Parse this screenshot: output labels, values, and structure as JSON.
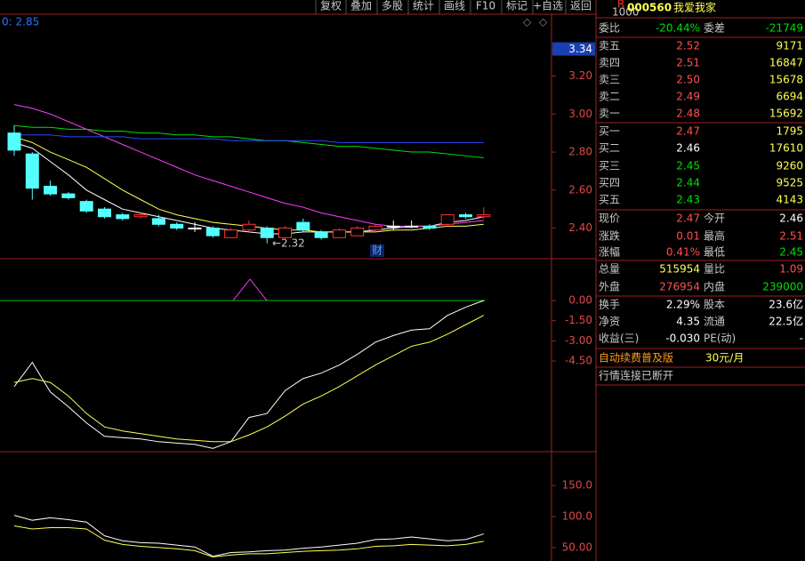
{
  "toolbar": [
    "复权",
    "叠加",
    "多股",
    "统计",
    "画线",
    "F10",
    "标记",
    "+自选",
    "返回"
  ],
  "price_panel": {
    "info": "0: 2.85",
    "ylim": [
      2.239,
      3.525
    ],
    "yticks": [
      {
        "value": 3.34,
        "label": "3.34"
      },
      {
        "value": 3.2,
        "label": "3.20"
      },
      {
        "value": 3.0,
        "label": "3.00"
      },
      {
        "value": 2.8,
        "label": "2.80"
      },
      {
        "value": 2.6,
        "label": "2.60"
      },
      {
        "value": 2.4,
        "label": "2.40"
      }
    ],
    "up_color": "#ff3232",
    "down_color": "#54ffff",
    "flat_color": "#ffffff",
    "candles": [
      {
        "open": 2.9,
        "high": 2.94,
        "low": 2.78,
        "close": 2.81
      },
      {
        "open": 2.79,
        "high": 2.8,
        "low": 2.55,
        "close": 2.61
      },
      {
        "open": 2.62,
        "high": 2.65,
        "low": 2.57,
        "close": 2.58
      },
      {
        "open": 2.58,
        "high": 2.59,
        "low": 2.55,
        "close": 2.56
      },
      {
        "open": 2.54,
        "high": 2.55,
        "low": 2.48,
        "close": 2.49
      },
      {
        "open": 2.5,
        "high": 2.51,
        "low": 2.45,
        "close": 2.46
      },
      {
        "open": 2.47,
        "high": 2.48,
        "low": 2.44,
        "close": 2.45
      },
      {
        "open": 2.46,
        "high": 2.48,
        "low": 2.45,
        "close": 2.47
      },
      {
        "open": 2.45,
        "high": 2.47,
        "low": 2.41,
        "close": 2.42
      },
      {
        "open": 2.42,
        "high": 2.43,
        "low": 2.39,
        "close": 2.4
      },
      {
        "open": 2.4,
        "high": 2.43,
        "low": 2.38,
        "close": 2.4
      },
      {
        "open": 2.4,
        "high": 2.41,
        "low": 2.35,
        "close": 2.36
      },
      {
        "open": 2.35,
        "high": 2.4,
        "low": 2.35,
        "close": 2.39
      },
      {
        "open": 2.39,
        "high": 2.44,
        "low": 2.38,
        "close": 2.42
      },
      {
        "open": 2.4,
        "high": 2.41,
        "low": 2.32,
        "close": 2.35
      },
      {
        "open": 2.35,
        "high": 2.41,
        "low": 2.34,
        "close": 2.4
      },
      {
        "open": 2.43,
        "high": 2.45,
        "low": 2.38,
        "close": 2.39
      },
      {
        "open": 2.38,
        "high": 2.39,
        "low": 2.34,
        "close": 2.35
      },
      {
        "open": 2.35,
        "high": 2.4,
        "low": 2.35,
        "close": 2.39
      },
      {
        "open": 2.36,
        "high": 2.41,
        "low": 2.36,
        "close": 2.4
      },
      {
        "open": 2.39,
        "high": 2.42,
        "low": 2.38,
        "close": 2.41
      },
      {
        "open": 2.41,
        "high": 2.44,
        "low": 2.39,
        "close": 2.41
      },
      {
        "open": 2.41,
        "high": 2.44,
        "low": 2.4,
        "close": 2.41
      },
      {
        "open": 2.41,
        "high": 2.42,
        "low": 2.39,
        "close": 2.4
      },
      {
        "open": 2.42,
        "high": 2.47,
        "low": 2.41,
        "close": 2.47
      },
      {
        "open": 2.47,
        "high": 2.48,
        "low": 2.45,
        "close": 2.46
      },
      {
        "open": 2.46,
        "high": 2.51,
        "low": 2.45,
        "close": 2.47
      }
    ],
    "lines": [
      {
        "color": "#ffffff",
        "values": [
          2.85,
          2.82,
          2.75,
          2.68,
          2.6,
          2.55,
          2.5,
          2.48,
          2.46,
          2.44,
          2.42,
          2.4,
          2.39,
          2.38,
          2.37,
          2.37,
          2.38,
          2.38,
          2.38,
          2.38,
          2.39,
          2.4,
          2.41,
          2.41,
          2.43,
          2.44,
          2.46
        ]
      },
      {
        "color": "#ffff54",
        "values": [
          2.88,
          2.85,
          2.8,
          2.76,
          2.72,
          2.66,
          2.6,
          2.55,
          2.5,
          2.47,
          2.45,
          2.43,
          2.42,
          2.41,
          2.4,
          2.39,
          2.39,
          2.38,
          2.38,
          2.38,
          2.38,
          2.39,
          2.39,
          2.4,
          2.41,
          2.41,
          2.42
        ]
      },
      {
        "color": "#ff3cff",
        "values": [
          3.05,
          3.03,
          3.0,
          2.96,
          2.92,
          2.88,
          2.84,
          2.8,
          2.76,
          2.72,
          2.68,
          2.65,
          2.62,
          2.59,
          2.56,
          2.53,
          2.51,
          2.48,
          2.46,
          2.44,
          2.42,
          2.41,
          2.41,
          2.41,
          2.42,
          2.43,
          2.44
        ]
      },
      {
        "color": "#00e000",
        "values": [
          2.94,
          2.93,
          2.93,
          2.92,
          2.92,
          2.91,
          2.91,
          2.9,
          2.9,
          2.89,
          2.89,
          2.88,
          2.88,
          2.87,
          2.86,
          2.86,
          2.85,
          2.84,
          2.83,
          2.83,
          2.82,
          2.81,
          2.8,
          2.8,
          2.79,
          2.78,
          2.77
        ]
      },
      {
        "color": "#2848ff",
        "values": [
          2.89,
          2.89,
          2.89,
          2.88,
          2.88,
          2.88,
          2.88,
          2.87,
          2.87,
          2.87,
          2.87,
          2.87,
          2.86,
          2.86,
          2.86,
          2.86,
          2.86,
          2.86,
          2.85,
          2.85,
          2.85,
          2.85,
          2.85,
          2.85,
          2.85,
          2.85,
          2.85
        ]
      }
    ],
    "low_marker": "←2.32",
    "finance_marker": "财"
  },
  "indicator_panel": {
    "ylim": [
      -11.24,
      3.11
    ],
    "yticks": [
      {
        "value": 0,
        "label": "0.00"
      },
      {
        "value": -1.5,
        "label": "-1.50"
      },
      {
        "value": -3,
        "label": "-3.00"
      },
      {
        "value": -4.5,
        "label": "-4.50"
      }
    ],
    "lines": [
      {
        "color": "#ffffff",
        "values": [
          -6.4,
          -4.6,
          -6.8,
          -7.9,
          -9.1,
          -10.1,
          -10.2,
          -10.3,
          -10.5,
          -10.6,
          -10.7,
          -11.0,
          -10.5,
          -8.7,
          -8.4,
          -6.7,
          -5.8,
          -5.4,
          -4.8,
          -4.0,
          -3.1,
          -2.6,
          -2.2,
          -2.1,
          -1.1,
          -0.5,
          0.0
        ]
      },
      {
        "color": "#ffff54",
        "values": [
          -6.1,
          -5.8,
          -6.1,
          -7.1,
          -8.4,
          -9.4,
          -9.7,
          -9.9,
          -10.1,
          -10.3,
          -10.4,
          -10.5,
          -10.5,
          -10.0,
          -9.4,
          -8.6,
          -7.7,
          -7.1,
          -6.4,
          -5.6,
          -4.8,
          -4.1,
          -3.4,
          -3.1,
          -2.5,
          -1.8,
          -1.1
        ]
      }
    ]
  },
  "volume_panel": {
    "ylim": [
      28.4,
      204.5
    ],
    "yticks": [
      {
        "value": 150,
        "label": "150.0"
      },
      {
        "value": 100,
        "label": "100.0"
      },
      {
        "value": 50,
        "label": "50.00"
      }
    ],
    "lines": [
      {
        "color": "#ffffff",
        "values": [
          102,
          94,
          98,
          95,
          91,
          69,
          61,
          58,
          57,
          54,
          51,
          36,
          42,
          43,
          45,
          46,
          49,
          51,
          54,
          57,
          63,
          64,
          67,
          64,
          61,
          63,
          72
        ]
      },
      {
        "color": "#ffff54",
        "values": [
          85,
          80,
          82,
          82,
          80,
          62,
          55,
          52,
          50,
          48,
          45,
          35,
          38,
          40,
          40,
          42,
          44,
          45,
          46,
          48,
          52,
          53,
          55,
          54,
          53,
          55,
          60
        ]
      }
    ]
  },
  "quote": {
    "badge_top": "R",
    "badge_bottom": "1000",
    "code": "000560",
    "name": "我爱我家",
    "rows": [
      [
        {
          "text": "委比",
          "color": "#c8c8c8"
        },
        {
          "text": "-20.44%",
          "color": "#00e000"
        },
        {
          "text": "委差",
          "color": "#c8c8c8"
        },
        {
          "text": "-21749",
          "color": "#00e000"
        }
      ],
      [
        {
          "text": "卖五",
          "color": "#c8c8c8"
        },
        {
          "text": "2.52",
          "color": "#ff5050"
        },
        {
          "text": "9171",
          "color": "#ffff54"
        }
      ],
      [
        {
          "text": "卖四",
          "color": "#c8c8c8"
        },
        {
          "text": "2.51",
          "color": "#ff5050"
        },
        {
          "text": "16847",
          "color": "#ffff54"
        }
      ],
      [
        {
          "text": "卖三",
          "color": "#c8c8c8"
        },
        {
          "text": "2.50",
          "color": "#ff5050"
        },
        {
          "text": "15678",
          "color": "#ffff54"
        }
      ],
      [
        {
          "text": "卖二",
          "color": "#c8c8c8"
        },
        {
          "text": "2.49",
          "color": "#ff5050"
        },
        {
          "text": "6694",
          "color": "#ffff54"
        }
      ],
      [
        {
          "text": "卖一",
          "color": "#c8c8c8"
        },
        {
          "text": "2.48",
          "color": "#ff5050"
        },
        {
          "text": "15692",
          "color": "#ffff54"
        }
      ],
      [
        {
          "text": "买一",
          "color": "#c8c8c8"
        },
        {
          "text": "2.47",
          "color": "#ff5050"
        },
        {
          "text": "1795",
          "color": "#ffff54"
        }
      ],
      [
        {
          "text": "买二",
          "color": "#c8c8c8"
        },
        {
          "text": "2.46",
          "color": "#ffffff"
        },
        {
          "text": "17610",
          "color": "#ffff54"
        }
      ],
      [
        {
          "text": "买三",
          "color": "#c8c8c8"
        },
        {
          "text": "2.45",
          "color": "#00e000"
        },
        {
          "text": "9260",
          "color": "#ffff54"
        }
      ],
      [
        {
          "text": "买四",
          "color": "#c8c8c8"
        },
        {
          "text": "2.44",
          "color": "#00e000"
        },
        {
          "text": "9525",
          "color": "#ffff54"
        }
      ],
      [
        {
          "text": "买五",
          "color": "#c8c8c8"
        },
        {
          "text": "2.43",
          "color": "#00e000"
        },
        {
          "text": "4143",
          "color": "#ffff54"
        }
      ],
      [
        {
          "text": "现价",
          "color": "#c8c8c8"
        },
        {
          "text": "2.47",
          "color": "#ff5050"
        },
        {
          "text": "今开",
          "color": "#c8c8c8"
        },
        {
          "text": "2.46",
          "color": "#ffffff"
        }
      ],
      [
        {
          "text": "涨跌",
          "color": "#c8c8c8"
        },
        {
          "text": "0.01",
          "color": "#ff5050"
        },
        {
          "text": "最高",
          "color": "#c8c8c8"
        },
        {
          "text": "2.51",
          "color": "#ff5050"
        }
      ],
      [
        {
          "text": "涨幅",
          "color": "#c8c8c8"
        },
        {
          "text": "0.41%",
          "color": "#ff5050"
        },
        {
          "text": "最低",
          "color": "#c8c8c8"
        },
        {
          "text": "2.45",
          "color": "#00e000"
        }
      ],
      [
        {
          "text": "总量",
          "color": "#c8c8c8"
        },
        {
          "text": "515954",
          "color": "#ffff54"
        },
        {
          "text": "量比",
          "color": "#c8c8c8"
        },
        {
          "text": "1.09",
          "color": "#ff5050"
        }
      ],
      [
        {
          "text": "外盘",
          "color": "#c8c8c8"
        },
        {
          "text": "276954",
          "color": "#ff5050"
        },
        {
          "text": "内盘",
          "color": "#c8c8c8"
        },
        {
          "text": "239000",
          "color": "#00e000"
        }
      ],
      [
        {
          "text": "换手",
          "color": "#c8c8c8"
        },
        {
          "text": "2.29%",
          "color": "#ffffff"
        },
        {
          "text": "股本",
          "color": "#c8c8c8"
        },
        {
          "text": "23.6亿",
          "color": "#ffffff"
        }
      ],
      [
        {
          "text": "净资",
          "color": "#c8c8c8"
        },
        {
          "text": "4.35",
          "color": "#ffffff"
        },
        {
          "text": "流通",
          "color": "#c8c8c8"
        },
        {
          "text": "22.5亿",
          "color": "#ffffff"
        }
      ],
      [
        {
          "text": "收益(三)",
          "color": "#c8c8c8"
        },
        {
          "text": "-0.030",
          "color": "#ffffff"
        },
        {
          "text": "PE(动)",
          "color": "#c8c8c8"
        },
        {
          "text": "-",
          "color": "#ffffff"
        }
      ]
    ],
    "promo": "自动续费普及版",
    "promo_price": "30元/月",
    "status": "行情连接已断开"
  }
}
